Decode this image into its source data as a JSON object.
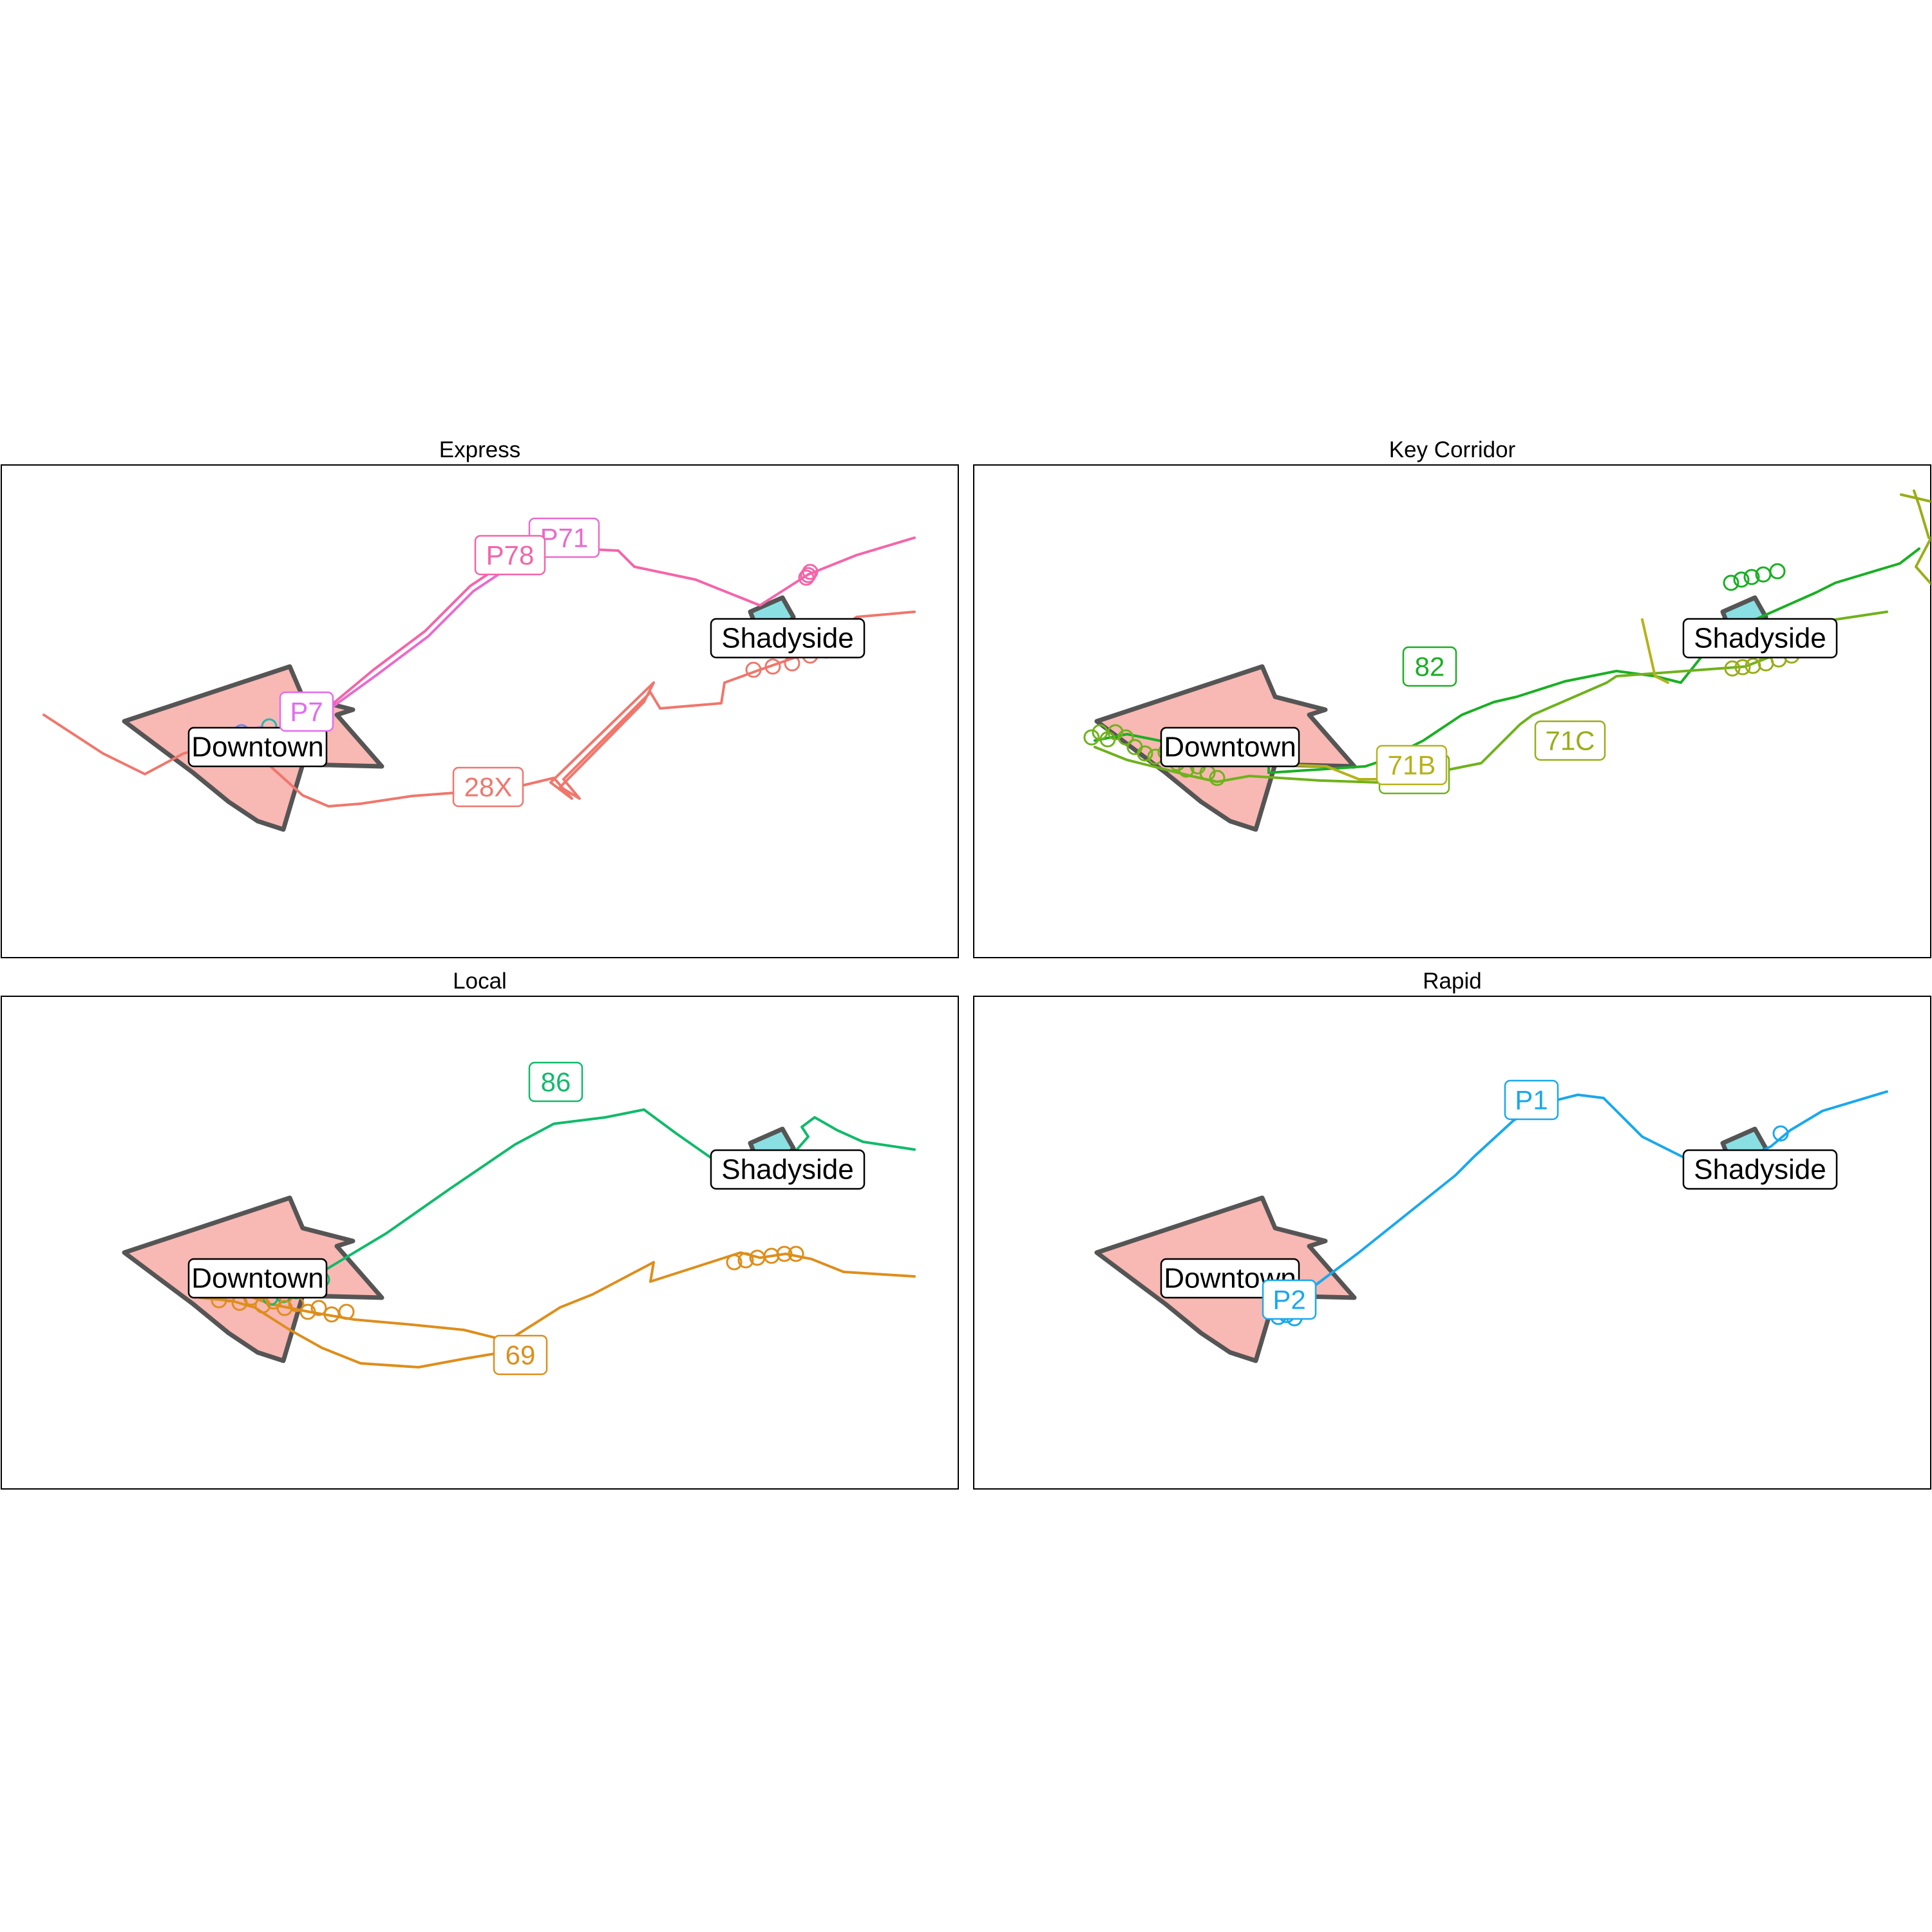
{
  "figure": {
    "panels": [
      {
        "title": "Express",
        "areas": [
          {
            "name": "Downtown",
            "color": "#F8B8B3"
          },
          {
            "name": "Shadyside",
            "color": "#8ADFE3"
          }
        ],
        "routes": [
          {
            "name": "28X",
            "color": "#F0766C"
          },
          {
            "name": "P71",
            "color": "#E86BCF"
          },
          {
            "name": "P78",
            "color": "#F564A8"
          },
          {
            "name": "P7",
            "color": "#E36CF0"
          },
          {
            "name": "",
            "color": "#1FB8B0"
          },
          {
            "name": "",
            "color": "#6C87F2"
          }
        ]
      },
      {
        "title": "Key Corridor",
        "areas": [
          {
            "name": "Downtown",
            "color": "#F8B8B3"
          },
          {
            "name": "Shadyside",
            "color": "#8ADFE3"
          }
        ],
        "routes": [
          {
            "name": "82",
            "color": "#1AAF24"
          },
          {
            "name": "71D",
            "color": "#6FB21C"
          },
          {
            "name": "71B",
            "color": "#B6B21A"
          },
          {
            "name": "71C",
            "color": "#9AAD18"
          }
        ]
      },
      {
        "title": "Local",
        "areas": [
          {
            "name": "Downtown",
            "color": "#F8B8B3"
          },
          {
            "name": "Shadyside",
            "color": "#8ADFE3"
          }
        ],
        "routes": [
          {
            "name": "86",
            "color": "#11BA6B"
          },
          {
            "name": "69",
            "color": "#DE8E1B"
          }
        ]
      },
      {
        "title": "Rapid",
        "areas": [
          {
            "name": "Downtown",
            "color": "#F8B8B3"
          },
          {
            "name": "Shadyside",
            "color": "#8ADFE3"
          }
        ],
        "routes": [
          {
            "name": "P1",
            "color": "#19A8EC"
          },
          {
            "name": "P2",
            "color": "#19A8EC"
          }
        ]
      }
    ]
  }
}
